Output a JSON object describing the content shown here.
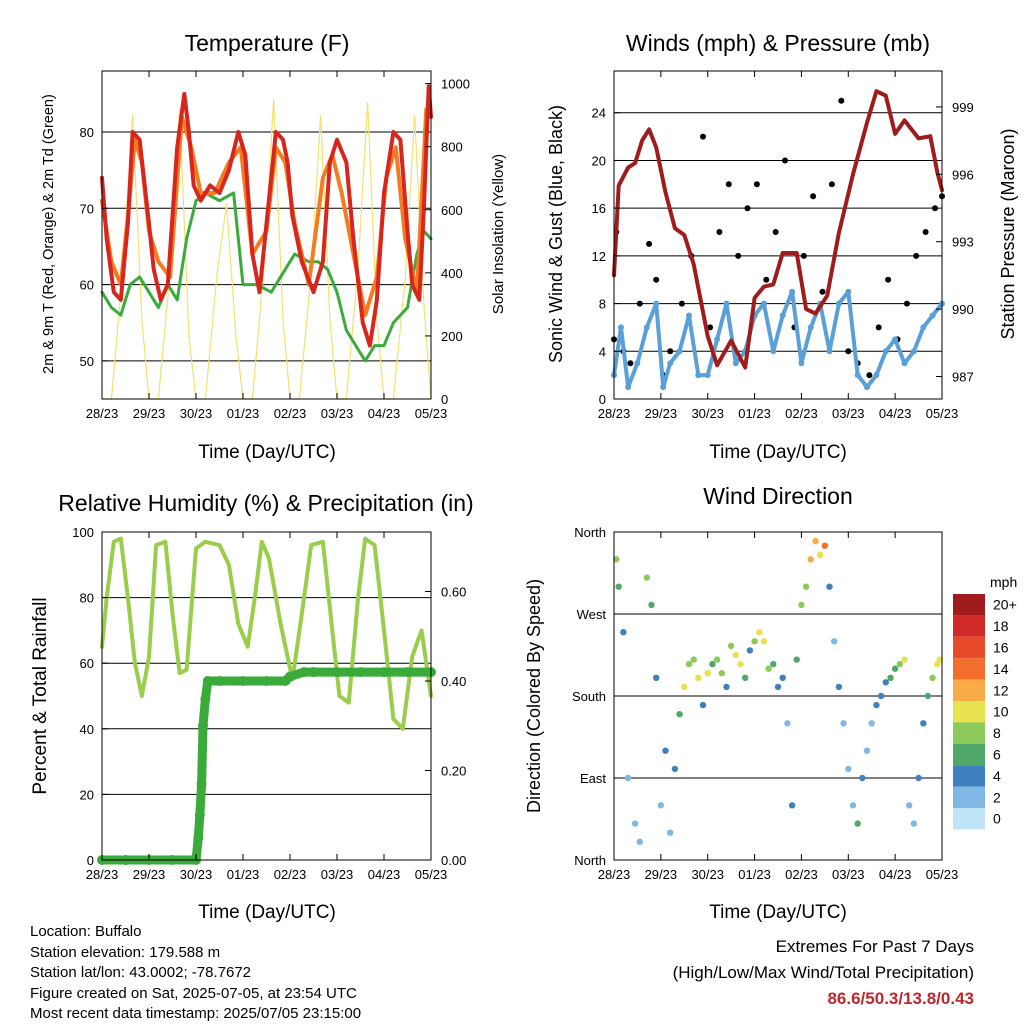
{
  "colors": {
    "temp_2m": "#d7261e",
    "temp_9m": "#f47b20",
    "dewpoint": "#3aab3a",
    "solar": "#f5e06e",
    "wind": "#5aa0d8",
    "gust": "#000000",
    "pressure": "#a01c1c",
    "rh": "#9acd4a",
    "precip": "#3aab3a",
    "extremes_text": "#c0272d"
  },
  "chart_data": [
    {
      "type": "line",
      "title": "Temperature (F)",
      "xlabel": "Time (Day/UTC)",
      "ylabel": "2m & 9m T (Red, Orange) & 2m Td (Green)",
      "y2label": "Solar Insolation (Yellow)",
      "x_ticks": [
        "28/23",
        "29/23",
        "30/23",
        "01/23",
        "02/23",
        "03/23",
        "04/23",
        "05/23"
      ],
      "xlim": [
        0,
        7
      ],
      "ylim": [
        45,
        88
      ],
      "y_ticks": [
        50,
        60,
        70,
        80
      ],
      "y2lim": [
        0,
        1040
      ],
      "y2_ticks": [
        0,
        200,
        400,
        600,
        800,
        1000
      ],
      "grid": true,
      "series": [
        {
          "name": "2m T",
          "color": "#d7261e",
          "x": [
            0,
            0.1,
            0.25,
            0.4,
            0.55,
            0.65,
            0.8,
            1.0,
            1.1,
            1.25,
            1.4,
            1.6,
            1.75,
            1.85,
            1.95,
            2.1,
            2.3,
            2.5,
            2.7,
            2.9,
            3.05,
            3.2,
            3.35,
            3.5,
            3.7,
            3.85,
            3.95,
            4.05,
            4.25,
            4.5,
            4.7,
            4.85,
            5.0,
            5.2,
            5.35,
            5.55,
            5.7,
            5.85,
            6.0,
            6.2,
            6.35,
            6.5,
            6.6,
            6.75,
            6.85,
            6.95,
            7.0
          ],
          "values": [
            74,
            66,
            59,
            58,
            68,
            80,
            79,
            68,
            62,
            58,
            60,
            78,
            85,
            80,
            73,
            71,
            73,
            72,
            75,
            80,
            77,
            64,
            59,
            68,
            80,
            79,
            76,
            69,
            63,
            59,
            63,
            76,
            79,
            76,
            66,
            55,
            52,
            58,
            72,
            80,
            79,
            67,
            60,
            58,
            70,
            86,
            82
          ]
        },
        {
          "name": "9m T",
          "color": "#f47b20",
          "x": [
            0,
            0.2,
            0.4,
            0.55,
            0.7,
            0.85,
            1.0,
            1.2,
            1.45,
            1.7,
            1.9,
            2.1,
            2.4,
            2.7,
            2.95,
            3.2,
            3.5,
            3.7,
            3.9,
            4.1,
            4.4,
            4.7,
            4.9,
            5.1,
            5.35,
            5.6,
            5.85,
            6.05,
            6.25,
            6.45,
            6.7,
            6.9,
            7.0
          ],
          "values": [
            71,
            63,
            60,
            69,
            79,
            76,
            67,
            63,
            61,
            82,
            78,
            72,
            72,
            76,
            78,
            64,
            67,
            78,
            76,
            68,
            60,
            74,
            77,
            72,
            64,
            56,
            61,
            74,
            78,
            66,
            59,
            83,
            82
          ]
        },
        {
          "name": "2m Td",
          "color": "#3aab3a",
          "x": [
            0,
            0.2,
            0.4,
            0.6,
            0.8,
            1.0,
            1.2,
            1.4,
            1.6,
            1.8,
            2.0,
            2.2,
            2.5,
            2.8,
            3.0,
            3.3,
            3.6,
            3.9,
            4.1,
            4.4,
            4.6,
            4.8,
            5.0,
            5.2,
            5.4,
            5.6,
            5.8,
            6.0,
            6.2,
            6.5,
            6.7,
            6.85,
            7.0
          ],
          "values": [
            59,
            57,
            56,
            60,
            61,
            59,
            57,
            60,
            58,
            66,
            71,
            72,
            71,
            72,
            60,
            60,
            59,
            62,
            64,
            63,
            63,
            62,
            59,
            54,
            52,
            50,
            52,
            52,
            55,
            57,
            64,
            67,
            66
          ]
        },
        {
          "name": "Solar",
          "color": "#f5e06e",
          "axis": "y2",
          "x": [
            0,
            0.2,
            0.45,
            0.65,
            0.85,
            1.0,
            1.2,
            1.45,
            1.65,
            1.85,
            2.0,
            2.2,
            2.45,
            2.65,
            2.85,
            3.0,
            3.2,
            3.45,
            3.65,
            3.85,
            4.0,
            4.2,
            4.45,
            4.65,
            4.85,
            5.0,
            5.2,
            5.45,
            5.65,
            5.85,
            6.0,
            6.2,
            6.45,
            6.65,
            6.85,
            7.0
          ],
          "values": [
            0,
            0,
            420,
            900,
            250,
            0,
            0,
            400,
            920,
            200,
            0,
            0,
            400,
            620,
            200,
            0,
            0,
            420,
            950,
            250,
            0,
            0,
            400,
            900,
            250,
            0,
            0,
            420,
            940,
            250,
            0,
            0,
            380,
            900,
            300,
            0
          ]
        }
      ]
    },
    {
      "type": "scatter",
      "title": "Winds (mph) & Pressure (mb)",
      "xlabel": "Time (Day/UTC)",
      "ylabel": "Sonic Wind & Gust (Blue, Black)",
      "y2label": "Station Pressure (Maroon)",
      "x_ticks": [
        "28/23",
        "29/23",
        "30/23",
        "01/23",
        "02/23",
        "03/23",
        "04/23",
        "05/23"
      ],
      "xlim": [
        0,
        7
      ],
      "ylim": [
        0,
        27.5
      ],
      "y_ticks": [
        0,
        4,
        8,
        12,
        16,
        20,
        24
      ],
      "y2lim": [
        986,
        1000.6
      ],
      "y2_ticks": [
        987,
        990,
        993,
        996,
        999
      ],
      "grid": true,
      "series": [
        {
          "name": "Pressure",
          "color": "#a01c1c",
          "axis": "y2",
          "type": "line",
          "x": [
            0,
            0.1,
            0.3,
            0.45,
            0.6,
            0.75,
            0.9,
            1.1,
            1.3,
            1.5,
            1.7,
            2.0,
            2.2,
            2.5,
            2.8,
            3.0,
            3.2,
            3.4,
            3.6,
            3.9,
            4.1,
            4.3,
            4.55,
            4.8,
            5.1,
            5.4,
            5.6,
            5.8,
            6.0,
            6.2,
            6.5,
            6.75,
            6.9,
            7.0
          ],
          "values": [
            991.5,
            995.5,
            996.3,
            996.5,
            997.5,
            998.0,
            997.2,
            995.2,
            993.6,
            993.3,
            992.0,
            988.8,
            987.5,
            988.6,
            987.4,
            990.5,
            991.0,
            991.1,
            992.5,
            992.5,
            990.0,
            989.8,
            990.6,
            993.4,
            996.0,
            998.3,
            999.7,
            999.5,
            997.8,
            998.4,
            997.6,
            997.7,
            996.1,
            995.3
          ]
        },
        {
          "name": "Wind",
          "color": "#5aa0d8",
          "x": [
            0,
            0.15,
            0.3,
            0.5,
            0.7,
            0.9,
            1.05,
            1.2,
            1.4,
            1.6,
            1.8,
            2.0,
            2.2,
            2.4,
            2.6,
            2.8,
            3.0,
            3.2,
            3.4,
            3.6,
            3.8,
            4.0,
            4.2,
            4.4,
            4.6,
            4.8,
            5.0,
            5.2,
            5.4,
            5.6,
            5.8,
            6.0,
            6.2,
            6.4,
            6.6,
            6.8,
            7.0
          ],
          "values": [
            2,
            6,
            1,
            3,
            6,
            8,
            1,
            3,
            4,
            7,
            2,
            2,
            5,
            8,
            3,
            4,
            7,
            8,
            4,
            7,
            9,
            3,
            6,
            8,
            4,
            8,
            9,
            2,
            1,
            2,
            4,
            5,
            3,
            4,
            6,
            7,
            8
          ]
        },
        {
          "name": "Gust",
          "color": "#000000",
          "x": [
            0,
            0.05,
            0.2,
            0.35,
            0.55,
            0.75,
            0.9,
            1.05,
            1.2,
            1.45,
            1.65,
            1.9,
            2.05,
            2.25,
            2.45,
            2.65,
            2.85,
            3.05,
            3.25,
            3.45,
            3.65,
            3.85,
            4.05,
            4.25,
            4.45,
            4.65,
            4.85,
            5.0,
            5.2,
            5.45,
            5.65,
            5.85,
            6.05,
            6.25,
            6.45,
            6.65,
            6.85,
            7.0
          ],
          "values": [
            5,
            14,
            4,
            3,
            8,
            13,
            10,
            2,
            4,
            8,
            12,
            22,
            6,
            14,
            18,
            12,
            16,
            18,
            10,
            14,
            20,
            6,
            12,
            17,
            9,
            18,
            25,
            4,
            3,
            2,
            6,
            10,
            5,
            8,
            12,
            14,
            16,
            17
          ]
        }
      ]
    },
    {
      "type": "line",
      "title": "Relative Humidity (%) & Precipitation (in)",
      "xlabel": "Time (Day/UTC)",
      "ylabel": "Percent & Total Rainfall",
      "x_ticks": [
        "28/23",
        "29/23",
        "30/23",
        "01/23",
        "02/23",
        "03/23",
        "04/23",
        "05/23"
      ],
      "xlim": [
        0,
        7
      ],
      "ylim": [
        0,
        100
      ],
      "y_ticks": [
        0,
        20,
        40,
        60,
        80,
        100
      ],
      "y2lim": [
        0,
        0.733
      ],
      "y2_ticks": [
        "0.00",
        "0.20",
        "0.40",
        "0.60"
      ],
      "grid": true,
      "series": [
        {
          "name": "RH",
          "color": "#9acd4a",
          "x": [
            0,
            0.1,
            0.25,
            0.4,
            0.55,
            0.7,
            0.85,
            1.0,
            1.15,
            1.35,
            1.5,
            1.65,
            1.8,
            2.0,
            2.2,
            2.5,
            2.7,
            2.9,
            3.1,
            3.25,
            3.4,
            3.55,
            3.8,
            4.05,
            4.25,
            4.45,
            4.7,
            4.9,
            5.05,
            5.25,
            5.45,
            5.6,
            5.8,
            6.0,
            6.2,
            6.4,
            6.6,
            6.8,
            7.0
          ],
          "values": [
            65,
            80,
            97,
            98,
            80,
            60,
            50,
            62,
            96,
            97,
            75,
            57,
            58,
            95,
            97,
            96,
            90,
            72,
            65,
            80,
            97,
            92,
            72,
            55,
            75,
            96,
            97,
            70,
            50,
            48,
            80,
            98,
            96,
            70,
            43,
            40,
            62,
            70,
            50
          ]
        },
        {
          "name": "Precipitation",
          "color": "#3aab3a",
          "axis": "y2",
          "x": [
            0,
            0.5,
            1.0,
            1.5,
            2.0,
            2.05,
            2.08,
            2.12,
            2.15,
            2.2,
            2.25,
            2.5,
            3.0,
            3.5,
            3.9,
            4.0,
            4.3,
            4.5,
            5.0,
            5.5,
            6.0,
            6.5,
            7.0
          ],
          "values": [
            0.0,
            0.0,
            0.0,
            0.0,
            0.0,
            0.05,
            0.1,
            0.17,
            0.3,
            0.36,
            0.4,
            0.4,
            0.4,
            0.4,
            0.4,
            0.41,
            0.42,
            0.42,
            0.42,
            0.42,
            0.42,
            0.42,
            0.42
          ]
        }
      ]
    },
    {
      "type": "scatter",
      "title": "Wind Direction",
      "xlabel": "Time (Day/UTC)",
      "ylabel": "Direction (Colored By Speed)",
      "x_ticks": [
        "28/23",
        "29/23",
        "30/23",
        "01/23",
        "02/23",
        "03/23",
        "04/23",
        "05/23"
      ],
      "xlim": [
        0,
        7
      ],
      "ylim": [
        0,
        360
      ],
      "y_tick_labels": [
        "North",
        "East",
        "South",
        "West",
        "North"
      ],
      "grid": true,
      "legend": {
        "title": "mph",
        "placement": "right",
        "labels": [
          "20+",
          "18",
          "16",
          "14",
          "12",
          "10",
          "8",
          "6",
          "4",
          "2",
          "0"
        ],
        "colors": [
          "#a01c1c",
          "#cf2a27",
          "#e94a2c",
          "#f36e2d",
          "#f8ab46",
          "#e7e24e",
          "#8cc85a",
          "#4fa867",
          "#3e80c0",
          "#7fb7e5",
          "#bfe3f7"
        ]
      },
      "series": [
        {
          "name": "Direction",
          "x": [
            0.05,
            0.1,
            0.2,
            0.3,
            0.45,
            0.55,
            0.7,
            0.8,
            0.9,
            1.0,
            1.1,
            1.2,
            1.3,
            1.4,
            1.5,
            1.6,
            1.7,
            1.8,
            1.9,
            2.0,
            2.1,
            2.2,
            2.3,
            2.4,
            2.5,
            2.6,
            2.7,
            2.8,
            2.9,
            3.0,
            3.1,
            3.2,
            3.3,
            3.4,
            3.5,
            3.6,
            3.7,
            3.8,
            3.9,
            4.0,
            4.1,
            4.2,
            4.3,
            4.4,
            4.5,
            4.6,
            4.7,
            4.8,
            4.9,
            5.0,
            5.1,
            5.2,
            5.3,
            5.4,
            5.5,
            5.6,
            5.7,
            5.8,
            5.9,
            6.0,
            6.1,
            6.2,
            6.3,
            6.4,
            6.5,
            6.6,
            6.7,
            6.8,
            6.9,
            6.95
          ],
          "values": [
            330,
            300,
            250,
            90,
            40,
            20,
            310,
            280,
            200,
            60,
            120,
            30,
            100,
            160,
            190,
            215,
            220,
            200,
            170,
            205,
            215,
            220,
            205,
            190,
            235,
            225,
            215,
            200,
            230,
            240,
            250,
            240,
            210,
            215,
            190,
            200,
            150,
            60,
            220,
            280,
            300,
            330,
            350,
            335,
            345,
            300,
            240,
            190,
            150,
            100,
            60,
            40,
            90,
            120,
            150,
            170,
            180,
            195,
            200,
            210,
            215,
            220,
            60,
            40,
            90,
            150,
            180,
            200,
            215,
            220
          ],
          "speeds": [
            7,
            5,
            3,
            2,
            2,
            1,
            7,
            5,
            4,
            1,
            3,
            2,
            3,
            6,
            9,
            8,
            8,
            10,
            4,
            9,
            6,
            8,
            7,
            3,
            8,
            9,
            10,
            6,
            4,
            8,
            9,
            10,
            7,
            5,
            3,
            4,
            2,
            4,
            6,
            7,
            8,
            11,
            12,
            10,
            14,
            4,
            2,
            3,
            1,
            1,
            2,
            5,
            4,
            2,
            1,
            3,
            4,
            4,
            6,
            5,
            7,
            10,
            1,
            2,
            3,
            4,
            5,
            8,
            9,
            10
          ]
        }
      ]
    }
  ],
  "info": {
    "location": "Location: Buffalo",
    "elevation": "Station elevation: 179.588 m",
    "latlon": "Station lat/lon: 43.0002; -78.7672",
    "created": "Figure created on Sat, 2025-07-05, at 23:54 UTC",
    "timestamp": "Most recent data timestamp: 2025/07/05 23:15:00"
  },
  "extremes": {
    "heading": "Extremes For Past 7 Days",
    "subheading": "(High/Low/Max Wind/Total Precipitation)",
    "values": "86.6/50.3/13.8/0.43"
  }
}
